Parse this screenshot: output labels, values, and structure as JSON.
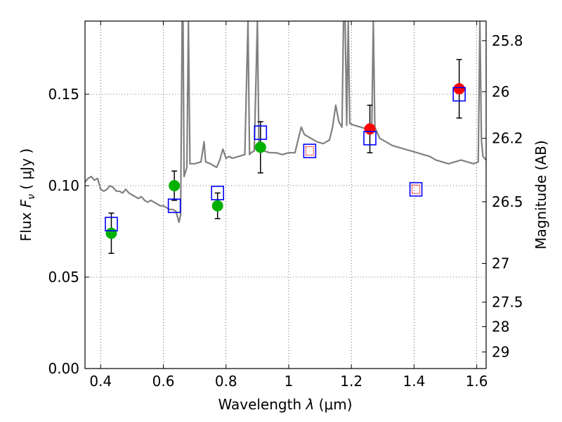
{
  "chart_data": {
    "type": "scatter",
    "xlabel_main": "Wavelength  ",
    "xlabel_symbol": "λ",
    "xlabel_unit": " (μm)",
    "ylabel_left_main": "Flux  ",
    "ylabel_left_symbol": "F",
    "ylabel_left_sub": "ν",
    "ylabel_left_unit": "  ( μJy )",
    "ylabel_right": "Magnitude (AB)",
    "xlim": [
      0.35,
      1.63
    ],
    "ylim": [
      0.0,
      0.19
    ],
    "grid": true,
    "x_ticks": [
      {
        "value": 0.4,
        "label": "0.4"
      },
      {
        "value": 0.6,
        "label": "0.6"
      },
      {
        "value": 0.8,
        "label": "0.8"
      },
      {
        "value": 1.0,
        "label": "1"
      },
      {
        "value": 1.2,
        "label": "1.2"
      },
      {
        "value": 1.4,
        "label": "1.4"
      },
      {
        "value": 1.6,
        "label": "1.6"
      }
    ],
    "y_ticks": [
      {
        "value": 0.0,
        "label": "0.00"
      },
      {
        "value": 0.05,
        "label": "0.05"
      },
      {
        "value": 0.1,
        "label": "0.10"
      },
      {
        "value": 0.15,
        "label": "0.15"
      }
    ],
    "magnitude_ticks": [
      {
        "value": 0.1793,
        "label": "25.8"
      },
      {
        "value": 0.1514,
        "label": "26"
      },
      {
        "value": 0.1259,
        "label": "26.2"
      },
      {
        "value": 0.0912,
        "label": "26.5"
      },
      {
        "value": 0.0575,
        "label": "27"
      },
      {
        "value": 0.0363,
        "label": "27.5"
      },
      {
        "value": 0.0229,
        "label": "28"
      },
      {
        "value": 0.0091,
        "label": "29"
      }
    ],
    "model_spectrum": {
      "color": "#808080",
      "points": [
        [
          0.35,
          0.102
        ],
        [
          0.36,
          0.104
        ],
        [
          0.37,
          0.105
        ],
        [
          0.38,
          0.103
        ],
        [
          0.39,
          0.104
        ],
        [
          0.4,
          0.098
        ],
        [
          0.41,
          0.097
        ],
        [
          0.42,
          0.098
        ],
        [
          0.43,
          0.1
        ],
        [
          0.44,
          0.099
        ],
        [
          0.45,
          0.097
        ],
        [
          0.46,
          0.097
        ],
        [
          0.47,
          0.096
        ],
        [
          0.48,
          0.098
        ],
        [
          0.49,
          0.096
        ],
        [
          0.5,
          0.095
        ],
        [
          0.51,
          0.094
        ],
        [
          0.52,
          0.093
        ],
        [
          0.53,
          0.094
        ],
        [
          0.54,
          0.092
        ],
        [
          0.55,
          0.091
        ],
        [
          0.56,
          0.092
        ],
        [
          0.57,
          0.091
        ],
        [
          0.58,
          0.09
        ],
        [
          0.59,
          0.089
        ],
        [
          0.6,
          0.089
        ],
        [
          0.61,
          0.088
        ],
        [
          0.62,
          0.087
        ],
        [
          0.63,
          0.087
        ],
        [
          0.64,
          0.086
        ],
        [
          0.645,
          0.083
        ],
        [
          0.65,
          0.08
        ],
        [
          0.655,
          0.084
        ],
        [
          0.66,
          0.19
        ],
        [
          0.663,
          0.19
        ],
        [
          0.666,
          0.105
        ],
        [
          0.675,
          0.11
        ],
        [
          0.68,
          0.19
        ],
        [
          0.685,
          0.112
        ],
        [
          0.7,
          0.112
        ],
        [
          0.72,
          0.113
        ],
        [
          0.73,
          0.124
        ],
        [
          0.735,
          0.113
        ],
        [
          0.75,
          0.112
        ],
        [
          0.77,
          0.11
        ],
        [
          0.78,
          0.114
        ],
        [
          0.79,
          0.12
        ],
        [
          0.8,
          0.115
        ],
        [
          0.81,
          0.116
        ],
        [
          0.82,
          0.115
        ],
        [
          0.84,
          0.116
        ],
        [
          0.86,
          0.117
        ],
        [
          0.87,
          0.19
        ],
        [
          0.875,
          0.117
        ],
        [
          0.88,
          0.118
        ],
        [
          0.89,
          0.119
        ],
        [
          0.9,
          0.19
        ],
        [
          0.905,
          0.12
        ],
        [
          0.92,
          0.119
        ],
        [
          0.94,
          0.118
        ],
        [
          0.96,
          0.118
        ],
        [
          0.98,
          0.117
        ],
        [
          1.0,
          0.118
        ],
        [
          1.02,
          0.118
        ],
        [
          1.03,
          0.125
        ],
        [
          1.04,
          0.132
        ],
        [
          1.05,
          0.128
        ],
        [
          1.07,
          0.126
        ],
        [
          1.09,
          0.124
        ],
        [
          1.11,
          0.123
        ],
        [
          1.13,
          0.125
        ],
        [
          1.14,
          0.132
        ],
        [
          1.15,
          0.144
        ],
        [
          1.16,
          0.135
        ],
        [
          1.17,
          0.132
        ],
        [
          1.175,
          0.19
        ],
        [
          1.18,
          0.19
        ],
        [
          1.185,
          0.133
        ],
        [
          1.19,
          0.19
        ],
        [
          1.195,
          0.134
        ],
        [
          1.21,
          0.133
        ],
        [
          1.23,
          0.132
        ],
        [
          1.25,
          0.131
        ],
        [
          1.265,
          0.131
        ],
        [
          1.27,
          0.19
        ],
        [
          1.275,
          0.132
        ],
        [
          1.29,
          0.126
        ],
        [
          1.31,
          0.124
        ],
        [
          1.33,
          0.122
        ],
        [
          1.35,
          0.121
        ],
        [
          1.37,
          0.12
        ],
        [
          1.39,
          0.119
        ],
        [
          1.41,
          0.118
        ],
        [
          1.43,
          0.117
        ],
        [
          1.45,
          0.116
        ],
        [
          1.47,
          0.114
        ],
        [
          1.49,
          0.113
        ],
        [
          1.51,
          0.112
        ],
        [
          1.53,
          0.113
        ],
        [
          1.55,
          0.114
        ],
        [
          1.57,
          0.113
        ],
        [
          1.59,
          0.112
        ],
        [
          1.605,
          0.113
        ],
        [
          1.61,
          0.19
        ],
        [
          1.615,
          0.125
        ],
        [
          1.62,
          0.116
        ],
        [
          1.63,
          0.114
        ]
      ]
    },
    "series": [
      {
        "color": "#00b000",
        "marker": "filled-circle",
        "points": [
          {
            "x": 0.434,
            "y": 0.074,
            "err": 0.011
          },
          {
            "x": 0.635,
            "y": 0.1,
            "err": 0.008
          },
          {
            "x": 0.773,
            "y": 0.089,
            "err": 0.007
          },
          {
            "x": 0.91,
            "y": 0.121,
            "err": 0.014
          }
        ]
      },
      {
        "color": "#ff0000",
        "marker": "filled-circle",
        "points": [
          {
            "x": 1.259,
            "y": 0.131,
            "err": 0.013
          },
          {
            "x": 1.544,
            "y": 0.153,
            "err": 0.016
          }
        ]
      },
      {
        "color": "#0000ff",
        "marker": "open-square",
        "points": [
          {
            "x": 0.434,
            "y": 0.079
          },
          {
            "x": 0.635,
            "y": 0.089
          },
          {
            "x": 0.773,
            "y": 0.096
          },
          {
            "x": 0.91,
            "y": 0.129
          },
          {
            "x": 1.259,
            "y": 0.126
          },
          {
            "x": 1.544,
            "y": 0.15
          },
          {
            "x": 1.067,
            "y": 0.119
          },
          {
            "x": 1.406,
            "y": 0.098
          }
        ]
      },
      {
        "color": "#ff0000",
        "marker": "open-square-small",
        "points": [
          {
            "x": 1.067,
            "y": 0.119
          },
          {
            "x": 1.406,
            "y": 0.098
          }
        ]
      }
    ]
  }
}
